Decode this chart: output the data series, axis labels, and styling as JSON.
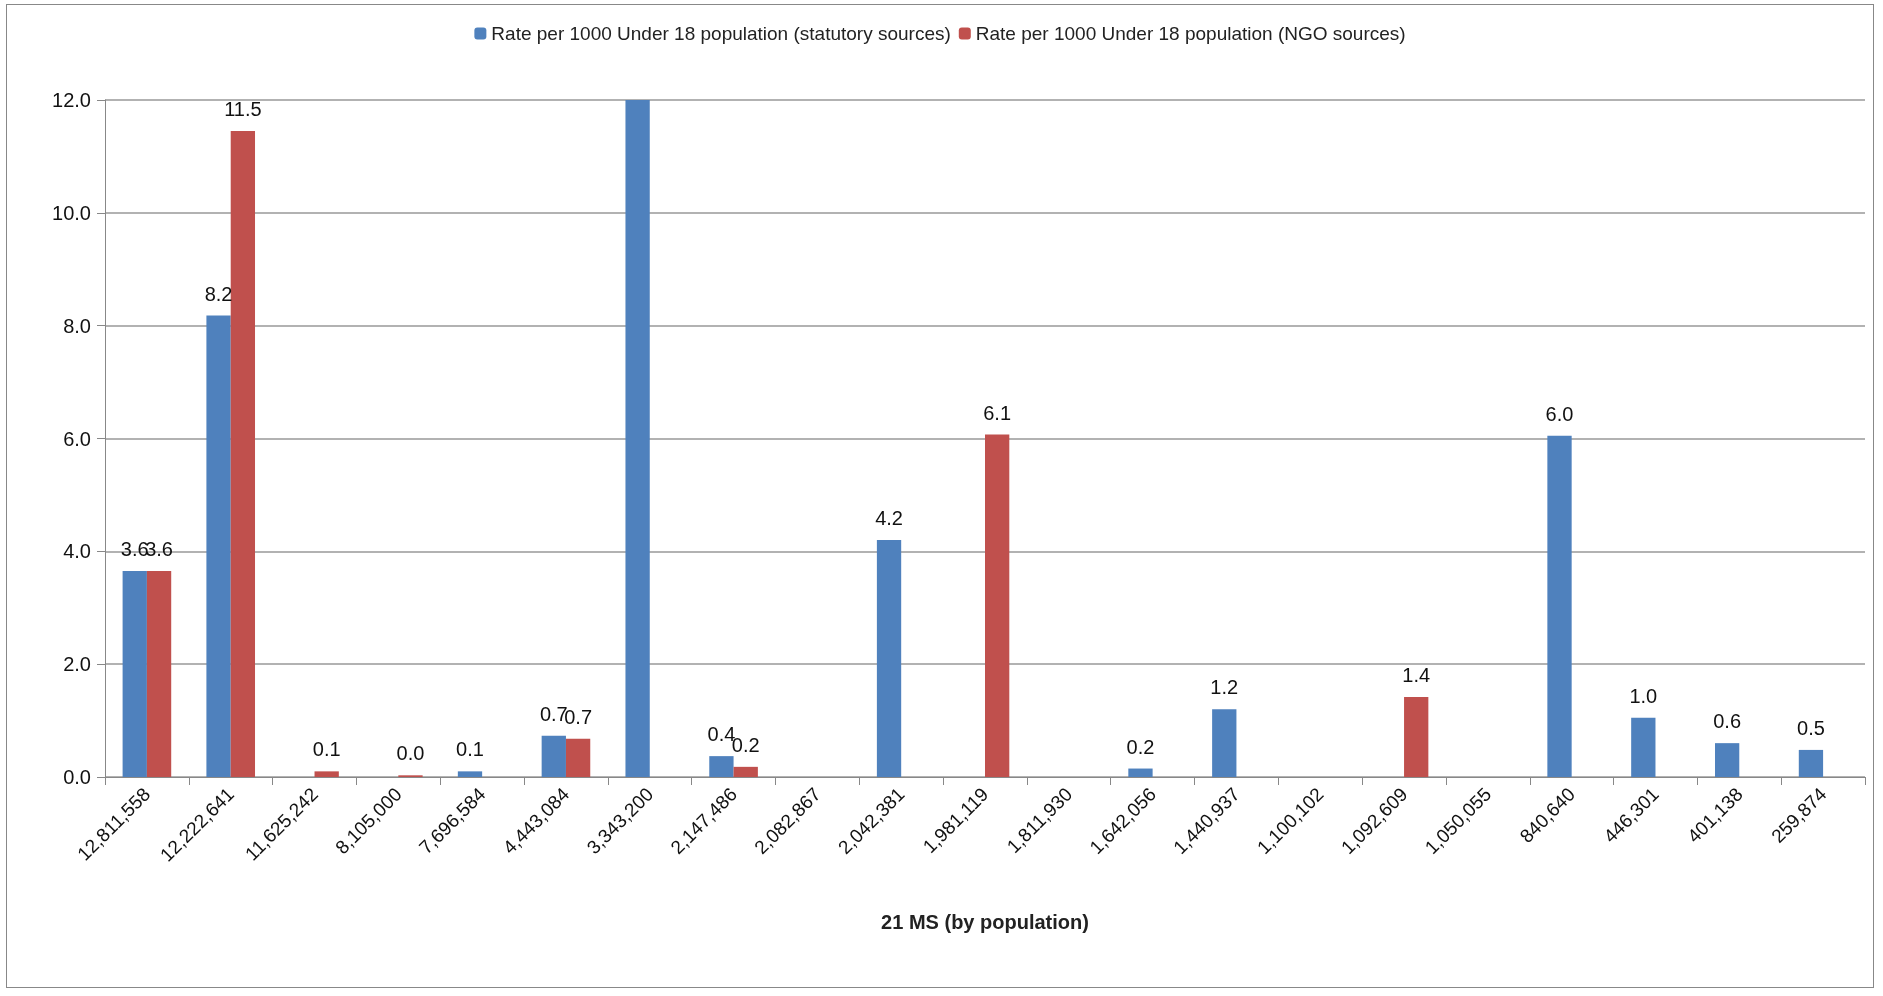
{
  "chart_data": {
    "type": "bar",
    "xlabel": "21 MS (by population)",
    "categories": [
      "12,811,558",
      "12,222,641",
      "11,625,242",
      "8,105,000",
      "7,696,584",
      "4,443,084",
      "3,343,200",
      "2,147,486",
      "2,082,867",
      "2,042,381",
      "1,981,119",
      "1,811,930",
      "1,642,056",
      "1,440,937",
      "1,100,102",
      "1,092,609",
      "1,050,055",
      "840,640",
      "446,301",
      "401,138",
      "259,874"
    ],
    "series": [
      {
        "name": "Rate per 1000 Under 18 population (statutory sources)",
        "color": "#4f81bd",
        "values": [
          3.65,
          8.18,
          null,
          null,
          0.1,
          0.73,
          12.0,
          0.37,
          null,
          4.2,
          null,
          null,
          0.15,
          1.2,
          null,
          null,
          null,
          6.05,
          1.05,
          0.6,
          0.48
        ],
        "value_labels": [
          "3.6",
          "8.2",
          null,
          null,
          "0.1",
          "0.7",
          null,
          "0.4",
          null,
          "4.2",
          null,
          null,
          "0.2",
          "1.2",
          null,
          null,
          null,
          "6.0",
          "1.0",
          "0.6",
          "0.5"
        ]
      },
      {
        "name": "Rate per 1000 Under 18 population (NGO sources)",
        "color": "#c0504d",
        "values": [
          3.65,
          11.45,
          0.1,
          0.03,
          null,
          0.68,
          null,
          0.18,
          null,
          null,
          6.07,
          null,
          null,
          null,
          null,
          1.42,
          null,
          null,
          null,
          null,
          null
        ],
        "value_labels": [
          "3.6",
          "11.5",
          "0.1",
          "0.0",
          null,
          "0.7",
          null,
          "0.2",
          null,
          null,
          "6.1",
          null,
          null,
          null,
          null,
          "1.4",
          null,
          null,
          null,
          null,
          null
        ]
      }
    ],
    "ylim": [
      0,
      12
    ],
    "yticks": [
      {
        "value": 0,
        "label": "0.0"
      },
      {
        "value": 2,
        "label": "2.0"
      },
      {
        "value": 4,
        "label": "4.0"
      },
      {
        "value": 6,
        "label": "6.0"
      },
      {
        "value": 8,
        "label": "8.0"
      },
      {
        "value": 10,
        "label": "10.0"
      },
      {
        "value": 12,
        "label": "12.0"
      }
    ],
    "grid": "y",
    "legend": "top"
  }
}
